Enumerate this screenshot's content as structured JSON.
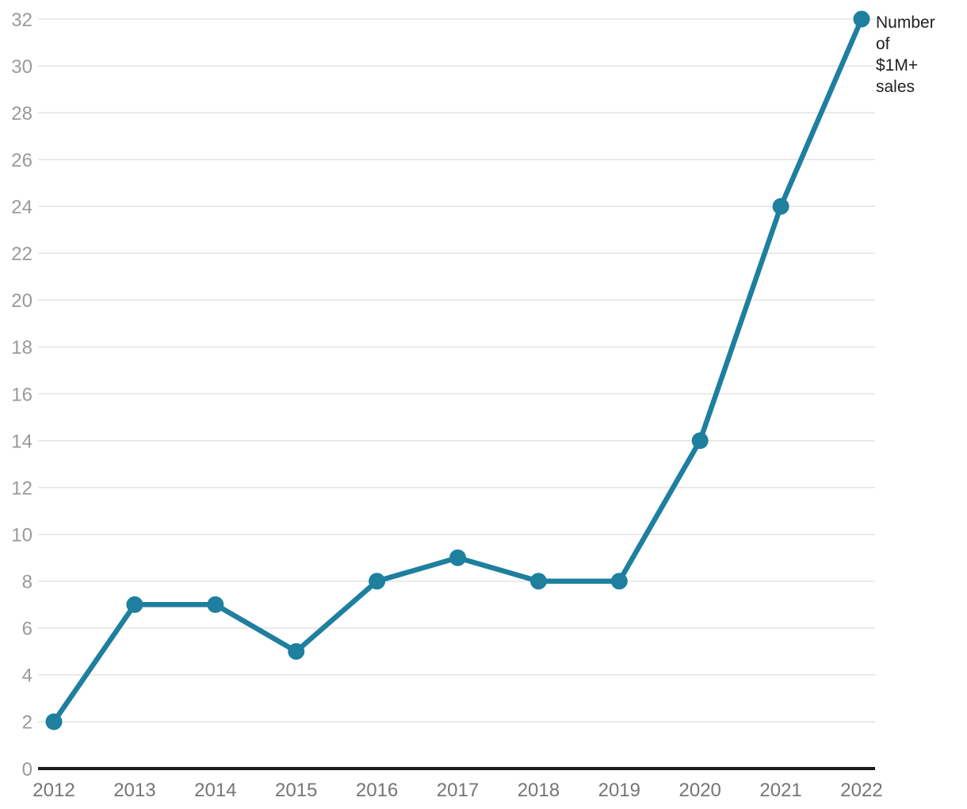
{
  "chart_data": {
    "type": "line",
    "x": [
      2012,
      2013,
      2014,
      2015,
      2016,
      2017,
      2018,
      2019,
      2020,
      2021,
      2022
    ],
    "values": [
      2,
      7,
      7,
      5,
      8,
      9,
      8,
      8,
      14,
      24,
      32
    ],
    "series_label": "Number of $1M+ sales",
    "series_label_lines": [
      "Number",
      "of",
      "$1M+",
      "sales"
    ],
    "title": "",
    "xlabel": "",
    "ylabel": "",
    "ylim": [
      0,
      32
    ],
    "ytick_step": 2,
    "grid": "horizontal",
    "legend_position": "end-of-line",
    "colors": {
      "series": "#1e7f9f",
      "grid": "#e3e3e3",
      "axis": "#1a1a1a",
      "y_tick_label": "#9a9a9a",
      "x_tick_label": "#757575",
      "annotation": "#212121"
    }
  }
}
